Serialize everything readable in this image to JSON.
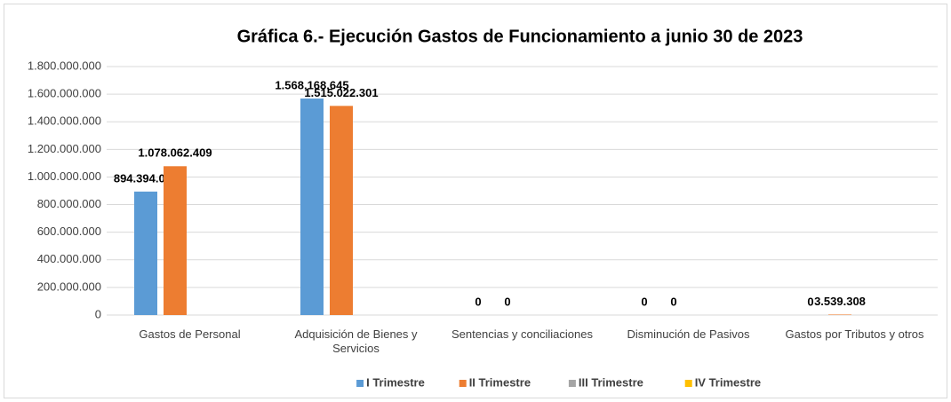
{
  "chart_data": {
    "type": "bar",
    "title": "Gráfica 6.- Ejecución Gastos de Funcionamiento a junio 30 de 2023",
    "categories": [
      "Gastos de Personal",
      "Adquisición de Bienes y Servicios",
      "Sentencias y conciliaciones",
      "Disminución de Pasivos",
      "Gastos por Tributos y otros"
    ],
    "series": [
      {
        "name": "I Trimestre",
        "color": "#5b9bd5",
        "values": [
          894394063,
          1568168645,
          0,
          0,
          0
        ],
        "value_labels": [
          "894.394.063",
          "1.568.168.645",
          "0",
          "0",
          "0"
        ]
      },
      {
        "name": "II Trimestre",
        "color": "#ed7d31",
        "values": [
          1078062409,
          1515022301,
          0,
          0,
          3539308
        ],
        "value_labels": [
          "1.078.062.409",
          "1.515.022.301",
          "0",
          "0",
          "3.539.308"
        ]
      },
      {
        "name": "III Trimestre",
        "color": "#a5a5a5",
        "values": [
          null,
          null,
          null,
          null,
          null
        ]
      },
      {
        "name": "IV Trimestre",
        "color": "#ffc000",
        "values": [
          null,
          null,
          null,
          null,
          null
        ]
      }
    ],
    "ylim": [
      0,
      1800000000
    ],
    "yticks": [
      0,
      {
        "value": 200000000,
        "label": "200.000.000"
      },
      {
        "value": 400000000,
        "label": "400.000.000"
      },
      {
        "value": 600000000,
        "label": "600.000.000"
      },
      {
        "value": 800000000,
        "label": "800.000.000"
      },
      {
        "value": 1000000000,
        "label": "1.000.000.000"
      },
      {
        "value": 1200000000,
        "label": "1.200.000.000"
      },
      {
        "value": 1400000000,
        "label": "1.400.000.000"
      },
      {
        "value": 1600000000,
        "label": "1.600.000.000"
      },
      {
        "value": 1800000000,
        "label": "1.800.000.000"
      }
    ],
    "grid": true,
    "legend": "bottom"
  }
}
